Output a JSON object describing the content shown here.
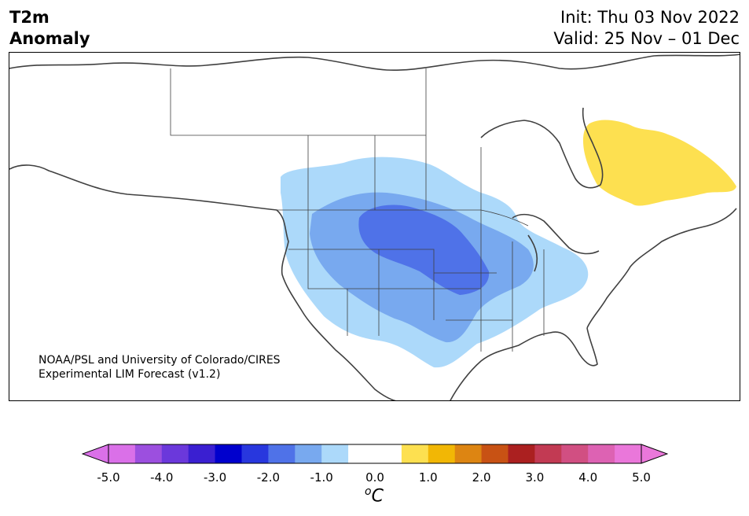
{
  "header": {
    "title_line1": "T2m",
    "title_line2": "Anomaly",
    "init_text": "Init: Thu 03 Nov 2022",
    "valid_text": "Valid: 25 Nov – 01 Dec"
  },
  "credit": {
    "line1": "NOAA/PSL and University of Colorado/CIRES",
    "line2": "Experimental LIM Forecast (v1.2)"
  },
  "colorbar": {
    "unit_sup": "o",
    "unit_main": "C",
    "tick_labels": [
      "-5.0",
      "-4.0",
      "-3.0",
      "-2.0",
      "-1.0",
      "0.0",
      "1.0",
      "2.0",
      "3.0",
      "4.0",
      "5.0"
    ],
    "colors": [
      "#da70e8",
      "#9c4fdf",
      "#6b38db",
      "#3a1fd1",
      "#0000cd",
      "#2837de",
      "#4f72e8",
      "#78a9ef",
      "#acd9fa",
      "#ffffff",
      "#ffffff",
      "#fde050",
      "#f2b705",
      "#dd8512",
      "#c85214",
      "#ab2020",
      "#c23a53",
      "#d14f82",
      "#dd62b3",
      "#ea77da"
    ],
    "min_color": "#da70e8",
    "max_color": "#ea77da"
  },
  "map": {
    "coast_color": "#404040",
    "border_color": "#404040",
    "anomaly_palette": {
      "warm_1": "#fde050",
      "cool_1": "#acd9fa",
      "cool_2": "#78a9ef",
      "cool_3": "#4f72e8"
    }
  }
}
